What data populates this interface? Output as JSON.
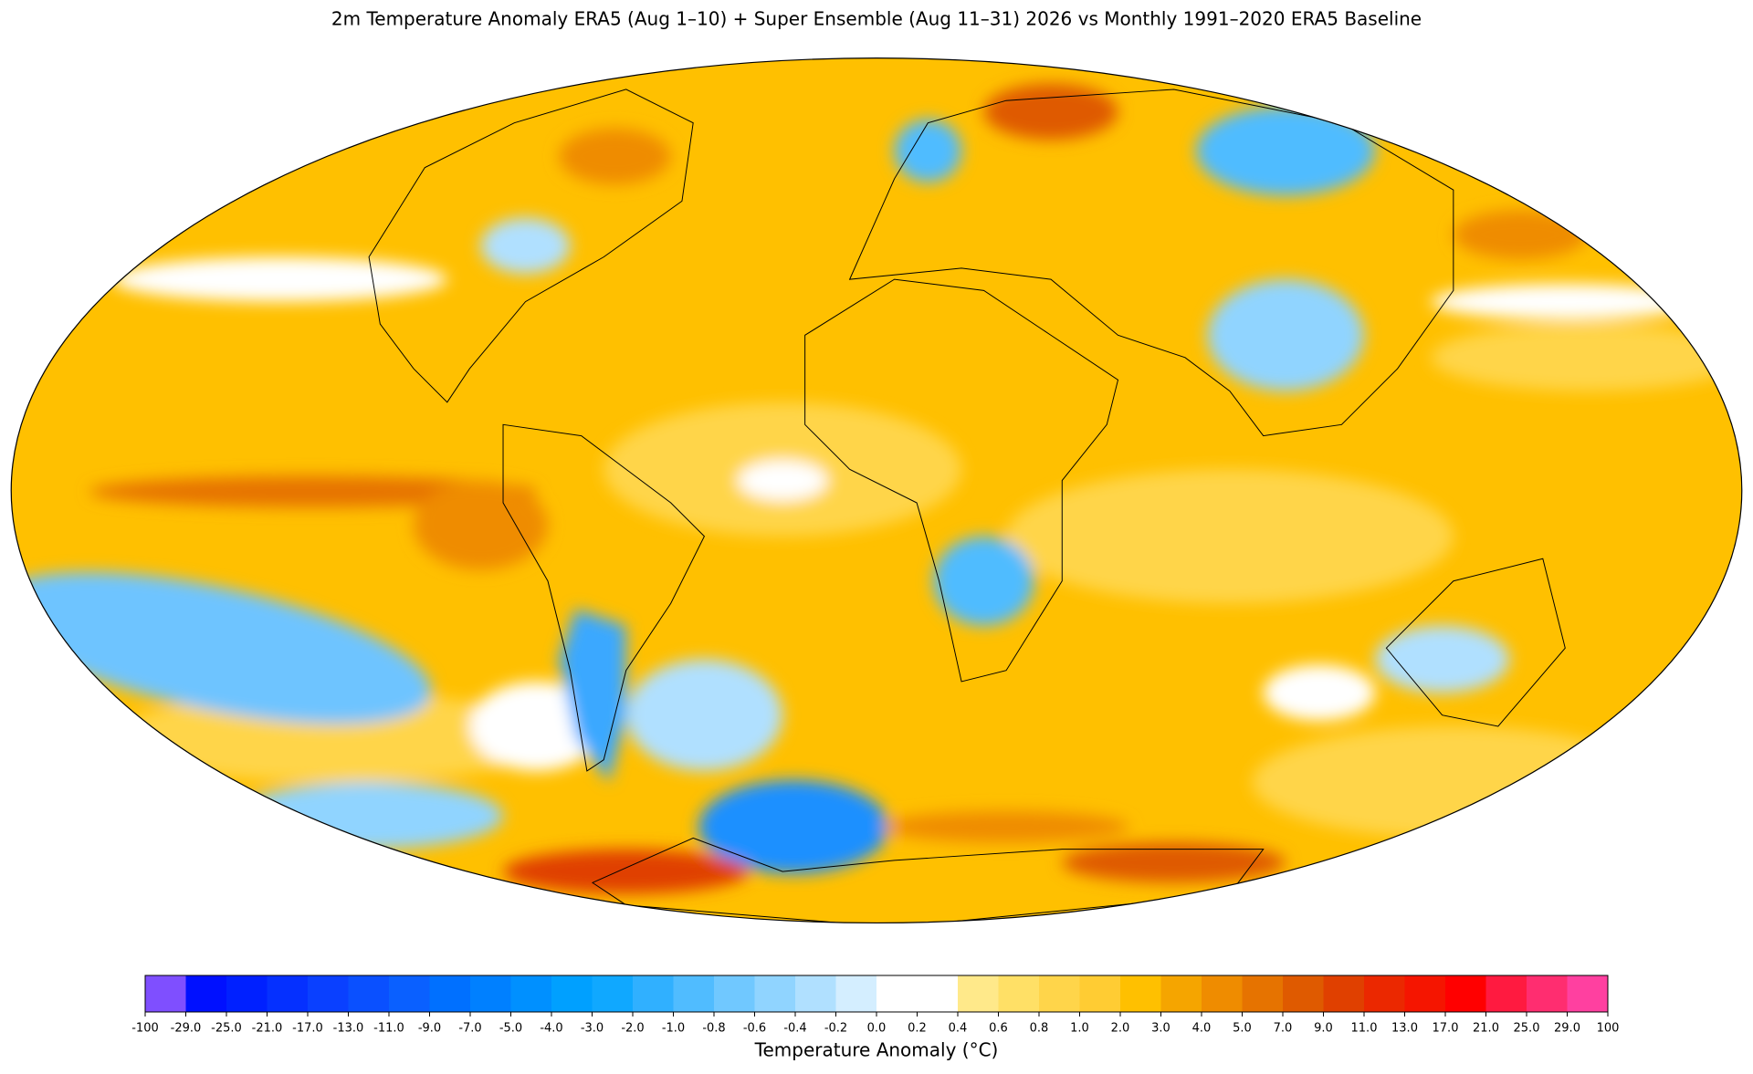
{
  "title": "2m Temperature Anomaly  ERA5 (Aug 1–10) + Super Ensemble (Aug 11–31) 2026  vs Monthly 1991–2020 ERA5 Baseline",
  "colorbar": {
    "label": "Temperature Anomaly (°C)",
    "ticks": [
      -100,
      {
        "value": -29,
        "label": "-29.0"
      },
      {
        "value": -25,
        "label": "-25.0"
      },
      {
        "value": -21,
        "label": "-21.0"
      },
      {
        "value": -17,
        "label": "-17.0"
      },
      {
        "value": -13,
        "label": "-13.0"
      },
      {
        "value": -11,
        "label": "-11.0"
      },
      {
        "value": -9,
        "label": "-9.0"
      },
      {
        "value": -7,
        "label": "-7.0"
      },
      {
        "value": -5,
        "label": "-5.0"
      },
      {
        "value": -4,
        "label": "-4.0"
      },
      {
        "value": -3,
        "label": "-3.0"
      },
      {
        "value": -2,
        "label": "-2.0"
      },
      {
        "value": -1,
        "label": "-1.0"
      },
      -0.8,
      -0.6,
      -0.4,
      -0.2,
      {
        "value": 0,
        "label": "0.0"
      },
      0.2,
      0.4,
      0.6,
      0.8,
      {
        "value": 1,
        "label": "1.0"
      },
      {
        "value": 2,
        "label": "2.0"
      },
      {
        "value": 3,
        "label": "3.0"
      },
      {
        "value": 4,
        "label": "4.0"
      },
      {
        "value": 5,
        "label": "5.0"
      },
      {
        "value": 7,
        "label": "7.0"
      },
      {
        "value": 9,
        "label": "9.0"
      },
      {
        "value": 11,
        "label": "11.0"
      },
      {
        "value": 13,
        "label": "13.0"
      },
      {
        "value": 17,
        "label": "17.0"
      },
      {
        "value": 21,
        "label": "21.0"
      },
      {
        "value": 25,
        "label": "25.0"
      },
      {
        "value": 29,
        "label": "29.0"
      },
      100
    ],
    "colors": [
      "#7f4fff",
      "#0010ff",
      "#0020ff",
      "#0530ff",
      "#0a40ff",
      "#0a50ff",
      "#0a60ff",
      "#0070ff",
      "#0080ff",
      "#0090ff",
      "#00a0ff",
      "#10a8ff",
      "#30b0ff",
      "#50bcff",
      "#70c8ff",
      "#90d4ff",
      "#b0e0ff",
      "#d4eeff",
      "#ffffff",
      "#ffffff",
      "#ffe98a",
      "#ffe066",
      "#ffd54a",
      "#ffcc33",
      "#ffc000",
      "#f5a500",
      "#ef8c00",
      "#e67300",
      "#df5a00",
      "#e04000",
      "#eb2800",
      "#f51500",
      "#ff0000",
      "#ff1a40",
      "#ff2d70",
      "#ff40a0"
    ]
  }
}
